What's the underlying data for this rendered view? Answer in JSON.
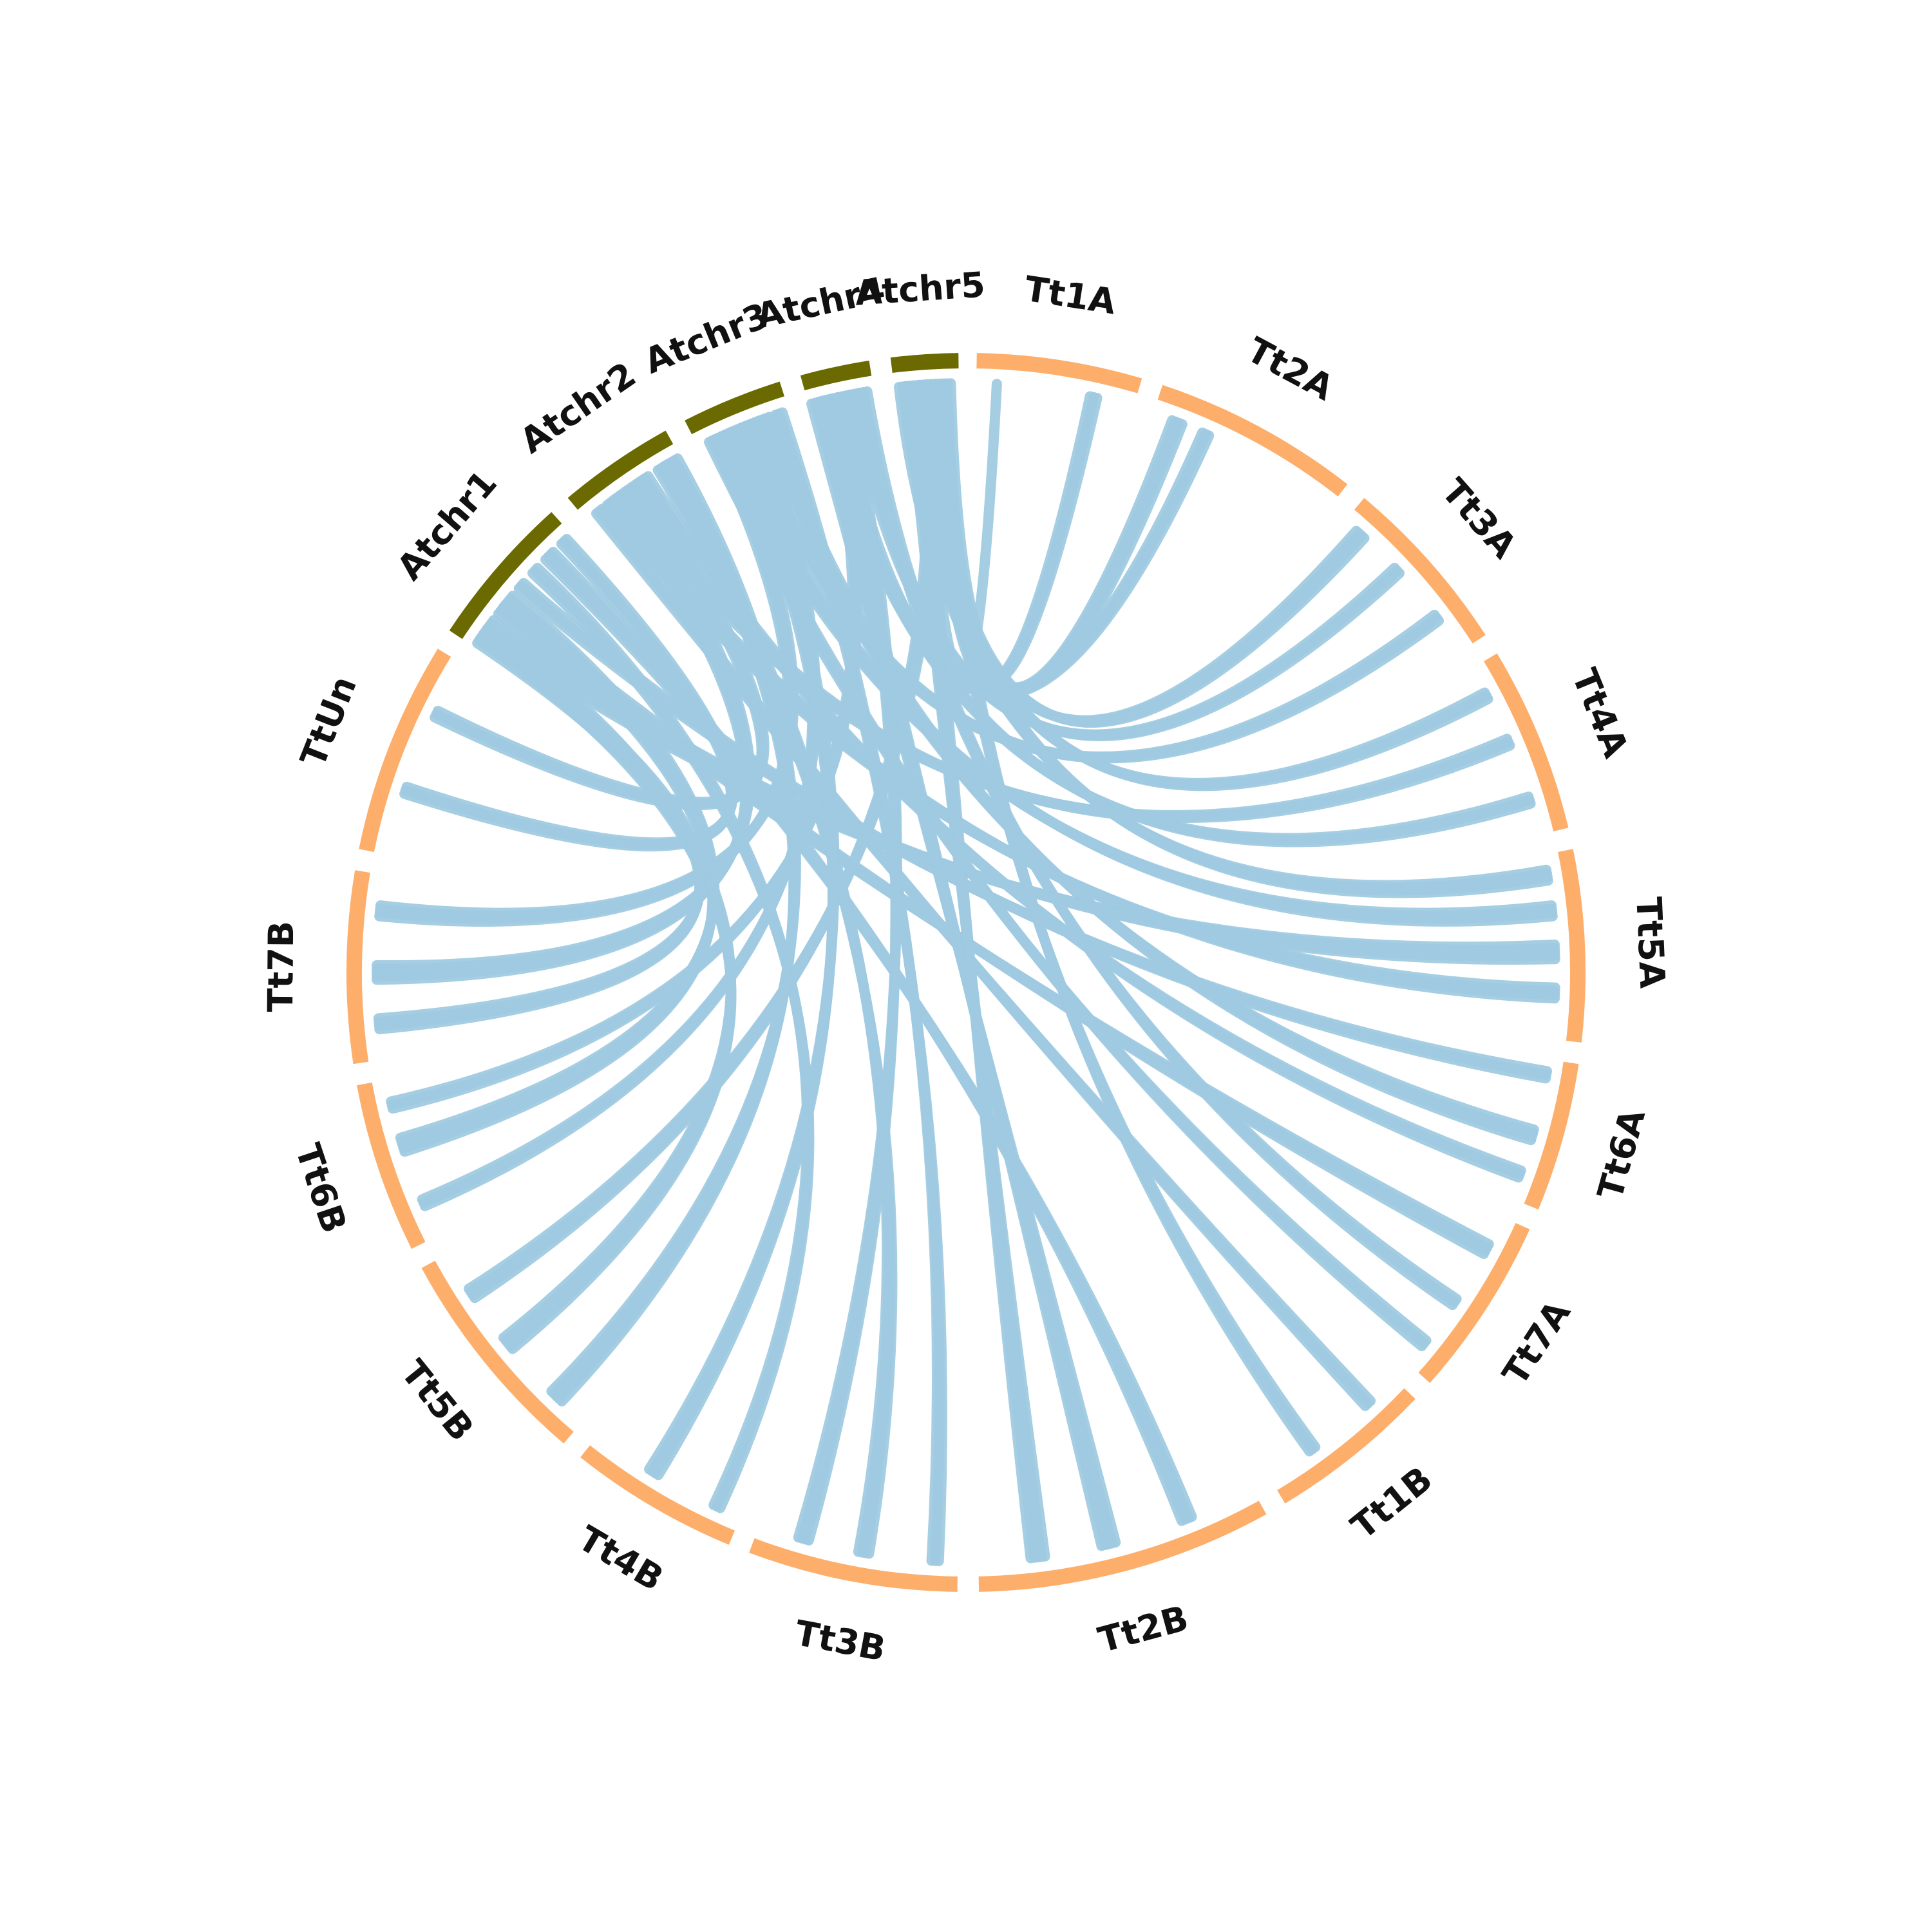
{
  "colors": {
    "arabidopsis": "#6a6a00",
    "triticum": "#fdae6b",
    "links": "#9ecae1",
    "background": "#ffffff",
    "label": "#111111"
  },
  "segments": [
    {
      "name": "Atchr1",
      "group": "arabidopsis",
      "start_deg": 303.5,
      "end_deg": 318.0
    },
    {
      "name": "Atchr2",
      "group": "arabidopsis",
      "start_deg": 320.0,
      "end_deg": 331.0
    },
    {
      "name": "Atchr3",
      "group": "arabidopsis",
      "start_deg": 333.0,
      "end_deg": 342.5
    },
    {
      "name": "Atchr4",
      "group": "arabidopsis",
      "start_deg": 344.5,
      "end_deg": 351.0
    },
    {
      "name": "Atchr5",
      "group": "arabidopsis",
      "start_deg": 353.0,
      "end_deg": 359.3
    },
    {
      "name": "Tt1A",
      "group": "triticum",
      "start_deg": 1.0,
      "end_deg": 16.5
    },
    {
      "name": "Tt2A",
      "group": "triticum",
      "start_deg": 18.5,
      "end_deg": 38.0
    },
    {
      "name": "Tt3A",
      "group": "triticum",
      "start_deg": 40.0,
      "end_deg": 57.0
    },
    {
      "name": "Tt4A",
      "group": "triticum",
      "start_deg": 59.0,
      "end_deg": 76.5
    },
    {
      "name": "Tt5A",
      "group": "triticum",
      "start_deg": 78.5,
      "end_deg": 96.5
    },
    {
      "name": "Tt6A",
      "group": "triticum",
      "start_deg": 98.5,
      "end_deg": 112.5
    },
    {
      "name": "Tt7A",
      "group": "triticum",
      "start_deg": 114.5,
      "end_deg": 131.5
    },
    {
      "name": "Tt1B",
      "group": "triticum",
      "start_deg": 133.5,
      "end_deg": 149.0
    },
    {
      "name": "Tt2B",
      "group": "triticum",
      "start_deg": 151.0,
      "end_deg": 178.8
    },
    {
      "name": "Tt3B",
      "group": "triticum",
      "start_deg": 180.8,
      "end_deg": 200.5
    },
    {
      "name": "Tt4B",
      "group": "triticum",
      "start_deg": 202.5,
      "end_deg": 218.5
    },
    {
      "name": "Tt5B",
      "group": "triticum",
      "start_deg": 220.5,
      "end_deg": 241.5
    },
    {
      "name": "Tt6B",
      "group": "triticum",
      "start_deg": 243.5,
      "end_deg": 259.5
    },
    {
      "name": "Tt7B",
      "group": "triticum",
      "start_deg": 261.5,
      "end_deg": 279.5
    },
    {
      "name": "TtUn",
      "group": "triticum",
      "start_deg": 281.5,
      "end_deg": 301.5
    }
  ],
  "links": [
    {
      "from": "Atchr5",
      "from_deg": 355.5,
      "to": "Tt1A",
      "to_deg": 3.0,
      "width": 1
    },
    {
      "from": "Atchr5",
      "from_deg": 357.0,
      "to": "Tt1A",
      "to_deg": 12.5,
      "width": 3
    },
    {
      "from": "Atchr5",
      "from_deg": 358.0,
      "to": "Tt2A",
      "to_deg": 21.0,
      "width": 4
    },
    {
      "from": "Atchr4",
      "from_deg": 347.0,
      "to": "Tt2A",
      "to_deg": 24.0,
      "width": 3
    },
    {
      "from": "Atchr5",
      "from_deg": 356.0,
      "to": "Tt3A",
      "to_deg": 42.0,
      "width": 4
    },
    {
      "from": "Atchr4",
      "from_deg": 349.0,
      "to": "Tt3A",
      "to_deg": 47.0,
      "width": 3
    },
    {
      "from": "Atchr3",
      "from_deg": 338.0,
      "to": "Tt3A",
      "to_deg": 53.0,
      "width": 3
    },
    {
      "from": "Atchr5",
      "from_deg": 354.5,
      "to": "Tt4A",
      "to_deg": 62.0,
      "width": 3
    },
    {
      "from": "Atchr2",
      "from_deg": 325.0,
      "to": "Tt4A",
      "to_deg": 67.0,
      "width": 3
    },
    {
      "from": "Atchr4",
      "from_deg": 346.0,
      "to": "Tt4A",
      "to_deg": 73.0,
      "width": 3
    },
    {
      "from": "Atchr5",
      "from_deg": 354.0,
      "to": "Tt5A",
      "to_deg": 80.5,
      "width": 4
    },
    {
      "from": "Atchr3",
      "from_deg": 336.0,
      "to": "Tt5A",
      "to_deg": 84.0,
      "width": 4
    },
    {
      "from": "Atchr1",
      "from_deg": 306.0,
      "to": "Tt5A",
      "to_deg": 88.0,
      "width": 5
    },
    {
      "from": "Atchr2",
      "from_deg": 323.0,
      "to": "Tt5A",
      "to_deg": 92.0,
      "width": 4
    },
    {
      "from": "Atchr1",
      "from_deg": 311.0,
      "to": "Tt6A",
      "to_deg": 100.0,
      "width": 3
    },
    {
      "from": "Atchr3",
      "from_deg": 340.0,
      "to": "Tt6A",
      "to_deg": 106.0,
      "width": 4
    },
    {
      "from": "Atchr2",
      "from_deg": 327.0,
      "to": "Tt6A",
      "to_deg": 110.0,
      "width": 3
    },
    {
      "from": "Atchr1",
      "from_deg": 308.0,
      "to": "Tt7A",
      "to_deg": 118.0,
      "width": 4
    },
    {
      "from": "Atchr4",
      "from_deg": 350.0,
      "to": "Tt7A",
      "to_deg": 124.0,
      "width": 3
    },
    {
      "from": "Atchr3",
      "from_deg": 334.5,
      "to": "Tt7A",
      "to_deg": 129.0,
      "width": 3
    },
    {
      "from": "Atchr2",
      "from_deg": 321.5,
      "to": "Tt1B",
      "to_deg": 137.0,
      "width": 3
    },
    {
      "from": "Atchr5",
      "from_deg": 357.5,
      "to": "Tt1B",
      "to_deg": 144.0,
      "width": 3
    },
    {
      "from": "Atchr1",
      "from_deg": 315.0,
      "to": "Tt2B",
      "to_deg": 158.0,
      "width": 4
    },
    {
      "from": "Atchr4",
      "from_deg": 345.5,
      "to": "Tt2B",
      "to_deg": 166.0,
      "width": 5
    },
    {
      "from": "Atchr5",
      "from_deg": 355.0,
      "to": "Tt2B",
      "to_deg": 173.0,
      "width": 5
    },
    {
      "from": "Atchr3",
      "from_deg": 341.5,
      "to": "Tt3B",
      "to_deg": 183.0,
      "width": 3
    },
    {
      "from": "Atchr2",
      "from_deg": 329.0,
      "to": "Tt3B",
      "to_deg": 190.0,
      "width": 4
    },
    {
      "from": "Atchr4",
      "from_deg": 348.0,
      "to": "Tt3B",
      "to_deg": 196.0,
      "width": 4
    },
    {
      "from": "Atchr1",
      "from_deg": 313.0,
      "to": "Tt4B",
      "to_deg": 205.0,
      "width": 3
    },
    {
      "from": "Atchr3",
      "from_deg": 337.0,
      "to": "Tt4B",
      "to_deg": 212.0,
      "width": 4
    },
    {
      "from": "Atchr2",
      "from_deg": 330.0,
      "to": "Tt5B",
      "to_deg": 224.0,
      "width": 5
    },
    {
      "from": "Atchr1",
      "from_deg": 305.0,
      "to": "Tt5B",
      "to_deg": 231.0,
      "width": 5
    },
    {
      "from": "Atchr5",
      "from_deg": 356.5,
      "to": "Tt5B",
      "to_deg": 237.0,
      "width": 4
    },
    {
      "from": "Atchr3",
      "from_deg": 339.0,
      "to": "Tt6B",
      "to_deg": 247.0,
      "width": 3
    },
    {
      "from": "Atchr1",
      "from_deg": 309.0,
      "to": "Tt6B",
      "to_deg": 253.0,
      "width": 5
    },
    {
      "from": "Atchr4",
      "from_deg": 346.5,
      "to": "Tt6B",
      "to_deg": 257.0,
      "width": 3
    },
    {
      "from": "Atchr1",
      "from_deg": 304.5,
      "to": "Tt7B",
      "to_deg": 265.0,
      "width": 4
    },
    {
      "from": "Atchr2",
      "from_deg": 324.0,
      "to": "Tt7B",
      "to_deg": 270.0,
      "width": 5
    },
    {
      "from": "Atchr3",
      "from_deg": 335.0,
      "to": "Tt7B",
      "to_deg": 276.0,
      "width": 4
    },
    {
      "from": "Atchr1",
      "from_deg": 317.0,
      "to": "TtUn",
      "to_deg": 288.0,
      "width": 3
    },
    {
      "from": "Atchr2",
      "from_deg": 326.0,
      "to": "TtUn",
      "to_deg": 296.0,
      "width": 3
    }
  ]
}
